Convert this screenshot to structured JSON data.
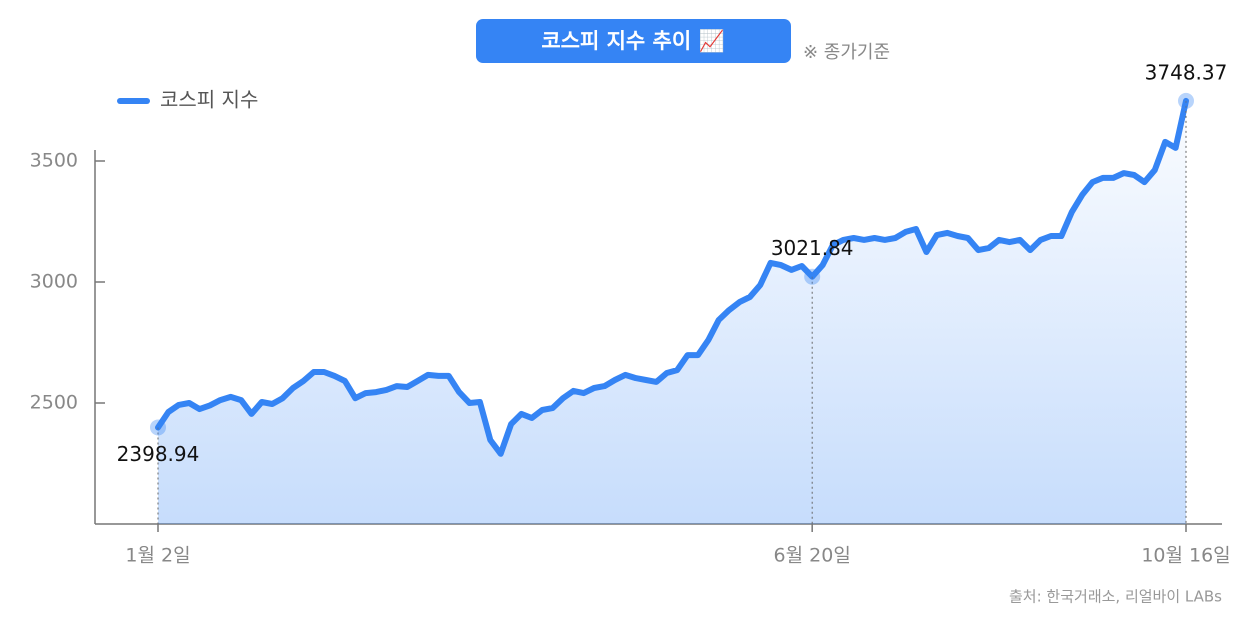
{
  "chart_data": {
    "type": "line",
    "title": "코스피 지수 추이 📈",
    "subtitle": "※ 종가기준",
    "source": "출처: 한국거래소, 리얼바이 LABs",
    "categories": [
      "1월 2일",
      null,
      null,
      null,
      null,
      null,
      null,
      null,
      null,
      null,
      null,
      null,
      null,
      null,
      null,
      null,
      null,
      null,
      null,
      null,
      null,
      null,
      null,
      null,
      null,
      null,
      null,
      null,
      null,
      null,
      null,
      null,
      null,
      null,
      null,
      null,
      null,
      null,
      null,
      null,
      null,
      null,
      null,
      null,
      null,
      null,
      null,
      null,
      null,
      null,
      null,
      null,
      null,
      null,
      null,
      null,
      null,
      null,
      null,
      null,
      null,
      null,
      null,
      "6월 20일",
      null,
      null,
      null,
      null,
      null,
      null,
      null,
      null,
      null,
      null,
      null,
      null,
      null,
      null,
      null,
      null,
      null,
      null,
      null,
      null,
      null,
      null,
      null,
      null,
      null,
      null,
      null,
      null,
      null,
      null,
      null,
      null,
      null,
      null,
      null,
      "10월 16일"
    ],
    "series": [
      {
        "name": "코스피 지수",
        "color": "#3584f4",
        "values": [
          2398.94,
          2463,
          2492,
          2500,
          2475,
          2490,
          2512,
          2525,
          2512,
          2455,
          2504,
          2496,
          2520,
          2562,
          2591,
          2628,
          2628,
          2612,
          2591,
          2520,
          2541,
          2545,
          2554,
          2570,
          2566,
          2591,
          2616,
          2612,
          2612,
          2545,
          2500,
          2504,
          2347,
          2290,
          2413,
          2455,
          2438,
          2471,
          2479,
          2520,
          2550,
          2541,
          2562,
          2570,
          2595,
          2616,
          2603,
          2595,
          2587,
          2624,
          2636,
          2698,
          2698,
          2760,
          2843,
          2884,
          2917,
          2938,
          2988,
          3079,
          3070,
          3050,
          3066,
          3021.84,
          3070,
          3153,
          3174,
          3182,
          3174,
          3182,
          3174,
          3182,
          3207,
          3219,
          3124,
          3194,
          3203,
          3190,
          3182,
          3132,
          3140,
          3174,
          3165,
          3174,
          3132,
          3174,
          3190,
          3190,
          3289,
          3360,
          3413,
          3430,
          3430,
          3450,
          3442,
          3413,
          3463,
          3579,
          3554,
          3748.37
        ]
      }
    ],
    "ylim": [
      2000,
      3800
    ],
    "yticks": [
      2500,
      3000,
      3500
    ],
    "grid": false
  }
}
